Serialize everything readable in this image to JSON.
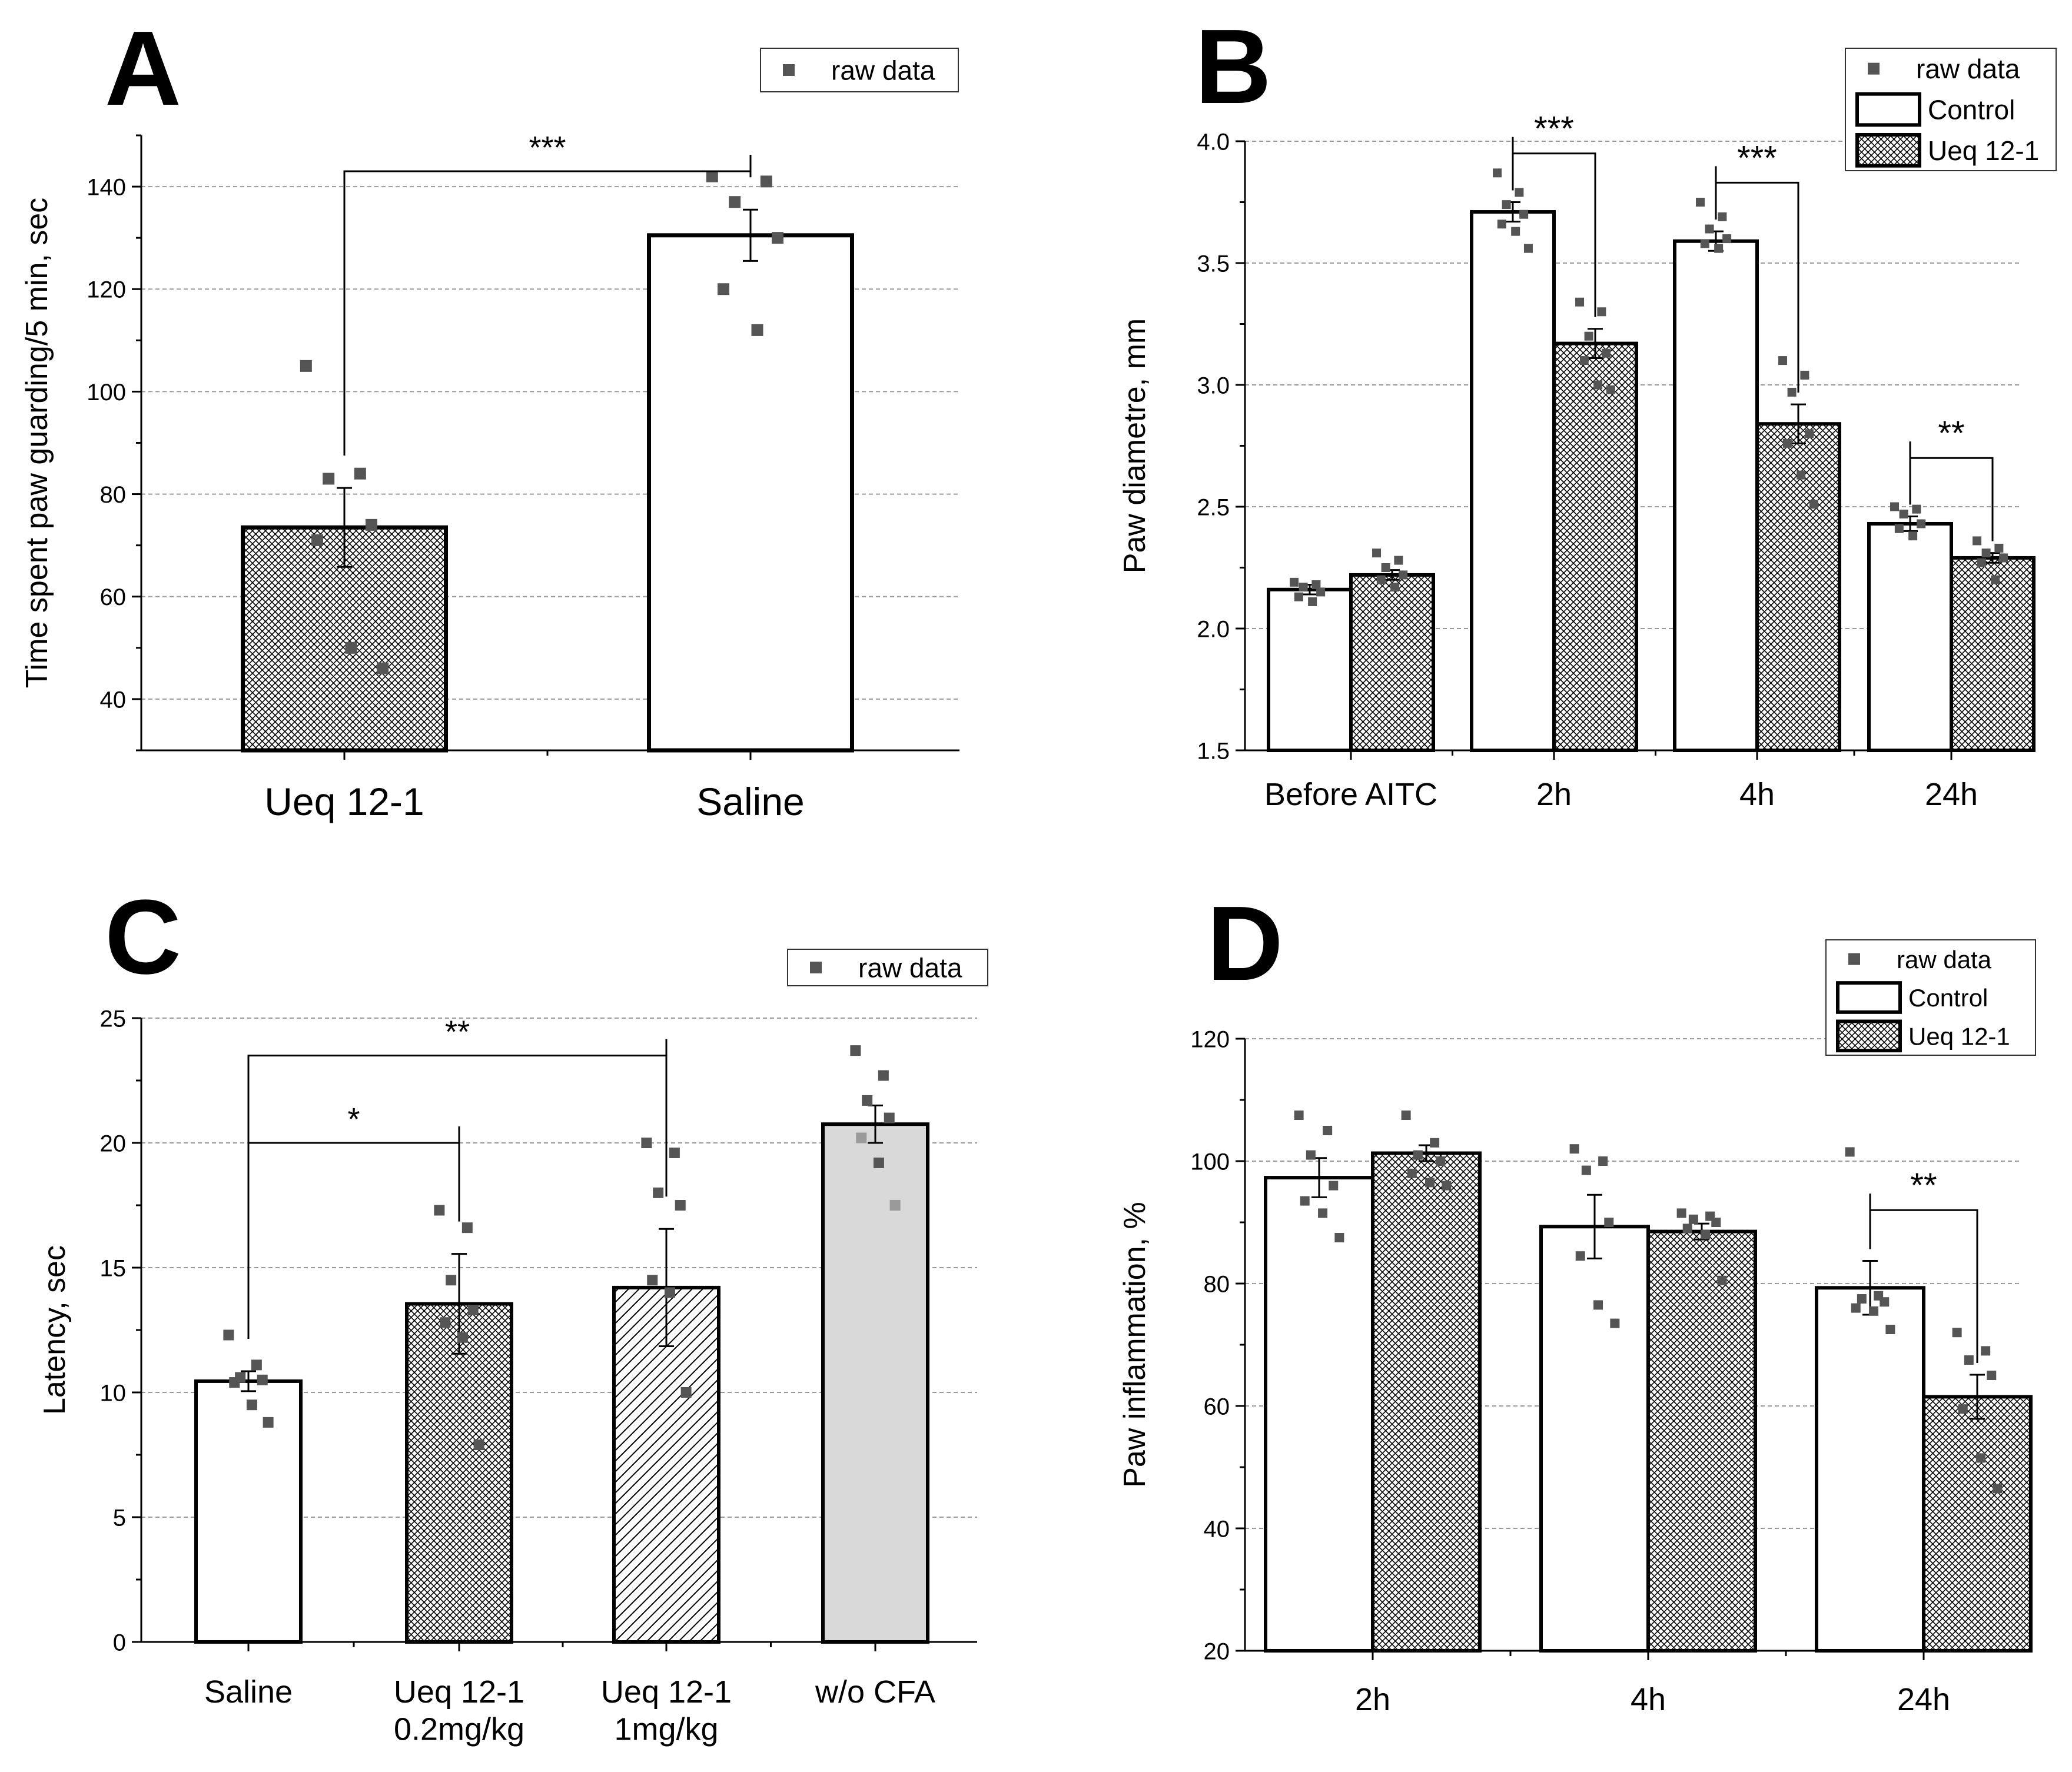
{
  "colors": {
    "bar_stroke": "#000000",
    "bar_white": "#ffffff",
    "bar_grey": "#d9d9d9",
    "raw_point": "#555555",
    "raw_point_light": "#9a9a9a",
    "grid": "#9a9a9a"
  },
  "chart_data": [
    {
      "panel": "A",
      "type": "bar",
      "ylabel": "Time spent paw guarding/5 min, sec",
      "ylim": [
        30,
        150
      ],
      "yticks": [
        40,
        60,
        80,
        100,
        120,
        140
      ],
      "ytick_labels": [
        "40",
        "60",
        "80",
        "100",
        "120",
        "140"
      ],
      "minor_step": 10,
      "categories": [
        "Ueq 12-1",
        "Saline"
      ],
      "values": [
        73.5,
        130.5
      ],
      "errors": [
        7.7,
        5
      ],
      "patterns": [
        "crosshatch",
        "none"
      ],
      "raw": [
        [
          105,
          84,
          83,
          74,
          71,
          50,
          46
        ],
        [
          142,
          141,
          137,
          130,
          120,
          112
        ]
      ],
      "legend": [
        {
          "label": "raw data",
          "marker": "square"
        }
      ],
      "significance": [
        {
          "label": "***",
          "from": 0,
          "to": 1,
          "y": 143
        }
      ]
    },
    {
      "panel": "B",
      "type": "bar",
      "ylabel": "Paw diametre, mm",
      "ylim": [
        1.5,
        4.0
      ],
      "yticks": [
        1.5,
        2.0,
        2.5,
        3.0,
        3.5,
        4.0
      ],
      "ytick_labels": [
        "1.5",
        "2.0",
        "2.5",
        "3.0",
        "3.5",
        "4.0"
      ],
      "minor_step": 0.25,
      "categories": [
        "Before AITC",
        "2h",
        "4h",
        "24h"
      ],
      "series": [
        {
          "name": "Control",
          "pattern": "none",
          "values": [
            2.16,
            3.71,
            3.59,
            2.43
          ],
          "errors": [
            0.02,
            0.04,
            0.04,
            0.03
          ],
          "raw": [
            [
              2.19,
              2.18,
              2.17,
              2.15,
              2.13,
              2.11
            ],
            [
              3.87,
              3.79,
              3.74,
              3.7,
              3.66,
              3.63,
              3.56
            ],
            [
              3.75,
              3.69,
              3.64,
              3.6,
              3.58,
              3.56
            ],
            [
              2.5,
              2.49,
              2.47,
              2.43,
              2.41,
              2.38
            ]
          ]
        },
        {
          "name": "Ueq 12-1",
          "pattern": "crosshatch",
          "values": [
            2.22,
            3.17,
            2.84,
            2.29
          ],
          "errors": [
            0.02,
            0.06,
            0.08,
            0.02
          ],
          "raw": [
            [
              2.31,
              2.28,
              2.25,
              2.22,
              2.2,
              2.17
            ],
            [
              3.34,
              3.3,
              3.2,
              3.13,
              3.1,
              3.0,
              2.98
            ],
            [
              3.1,
              3.04,
              2.97,
              2.8,
              2.76,
              2.63,
              2.51
            ],
            [
              2.36,
              2.33,
              2.31,
              2.29,
              2.27,
              2.2
            ]
          ]
        }
      ],
      "legend": [
        {
          "label": "raw data",
          "marker": "square"
        },
        {
          "label": "Control",
          "marker": "box-plain"
        },
        {
          "label": "Ueq 12-1",
          "marker": "box-crosshatch"
        }
      ],
      "significance": [
        {
          "label": "***",
          "category": 1,
          "y": 3.95
        },
        {
          "label": "***",
          "category": 2,
          "y": 3.83
        },
        {
          "label": "**",
          "category": 3,
          "y": 2.7
        }
      ]
    },
    {
      "panel": "C",
      "type": "bar",
      "ylabel": "Latency, sec",
      "ylim": [
        0,
        25
      ],
      "yticks": [
        0,
        5,
        10,
        15,
        20,
        25
      ],
      "ytick_labels": [
        "0",
        "5",
        "10",
        "15",
        "20",
        "25"
      ],
      "minor_step": 2.5,
      "categories": [
        [
          "Saline"
        ],
        [
          "Ueq 12-1",
          "0.2mg/kg"
        ],
        [
          "Ueq 12-1",
          "1mg/kg"
        ],
        [
          "w/o CFA"
        ]
      ],
      "values": [
        10.45,
        13.55,
        14.2,
        20.75
      ],
      "errors": [
        0.4,
        2.0,
        2.35,
        0.75
      ],
      "patterns": [
        "none",
        "crosshatch",
        "diagonal",
        "grey"
      ],
      "raw": [
        [
          12.3,
          11.1,
          10.6,
          10.5,
          10.4,
          9.5,
          8.8
        ],
        [
          17.3,
          16.6,
          14.5,
          13.3,
          12.8,
          12.2,
          7.9
        ],
        [
          20.0,
          19.6,
          18.0,
          17.5,
          14.5,
          14.0,
          10.0
        ],
        [
          23.7,
          22.7,
          21.7,
          21.0,
          20.2,
          19.2,
          17.5
        ]
      ],
      "legend": [
        {
          "label": "raw data",
          "marker": "square"
        }
      ],
      "significance": [
        {
          "label": "*",
          "from": 0,
          "to": 1,
          "y": 20
        },
        {
          "label": "**",
          "from": 0,
          "to": 2,
          "y": 23.5
        }
      ]
    },
    {
      "panel": "D",
      "type": "bar",
      "ylabel": "Paw inflammation, %",
      "ylim": [
        20,
        120
      ],
      "yticks": [
        20,
        40,
        60,
        80,
        100,
        120
      ],
      "ytick_labels": [
        "20",
        "40",
        "60",
        "80",
        "100",
        "120"
      ],
      "minor_step": 10,
      "categories": [
        "2h",
        "4h",
        "24h"
      ],
      "series": [
        {
          "name": "Control",
          "pattern": "none",
          "values": [
            97.3,
            89.3,
            79.3
          ],
          "errors": [
            3.2,
            5.2,
            4.4
          ],
          "raw": [
            [
              107.5,
              105,
              101,
              96,
              93.5,
              91.5,
              87.5
            ],
            [
              102,
              100,
              98.5,
              90,
              84.5,
              76.5,
              73.5
            ],
            [
              101.5,
              78,
              77.5,
              77,
              76,
              75.5,
              72.5
            ]
          ]
        },
        {
          "name": "Ueq 12-1",
          "pattern": "crosshatch",
          "values": [
            101.3,
            88.5,
            61.5
          ],
          "errors": [
            1.3,
            1.3,
            3.6
          ],
          "raw": [
            [
              107.5,
              103,
              101,
              100,
              98,
              96.5,
              96
            ],
            [
              91.5,
              91,
              90.5,
              90,
              89,
              88,
              80.5
            ],
            [
              72,
              69,
              67.5,
              65,
              59.5,
              51.5,
              46.5
            ]
          ]
        }
      ],
      "legend": [
        {
          "label": "raw data",
          "marker": "square"
        },
        {
          "label": "Control",
          "marker": "box-plain"
        },
        {
          "label": "Ueq 12-1",
          "marker": "box-crosshatch"
        }
      ],
      "significance": [
        {
          "label": "**",
          "category": 2,
          "y": 92
        }
      ]
    }
  ]
}
